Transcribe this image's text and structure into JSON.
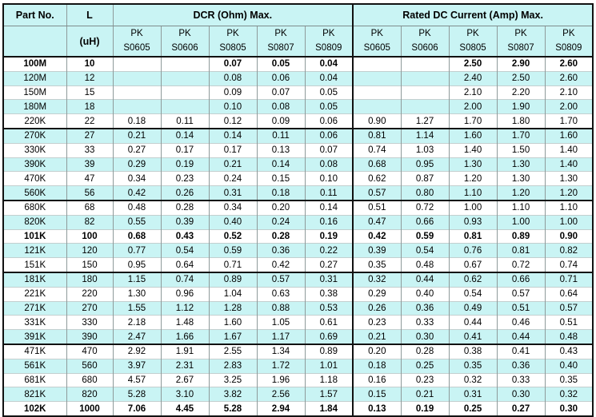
{
  "header": {
    "part_no": "Part No.",
    "l": "L",
    "l_unit": "(uH)",
    "dcr_group": "DCR (Ohm) Max.",
    "idc_group": "Rated DC Current (Amp) Max.",
    "series_prefix": "PK",
    "series": [
      "S0605",
      "S0606",
      "S0805",
      "S0807",
      "S0809"
    ]
  },
  "colors": {
    "stripe_cyan": "#c9f4f4",
    "header_bg": "#c9f4f4",
    "grid_gray": "#8e9a9a",
    "row_line": "#c3cfcf",
    "group_line": "#111111"
  },
  "rows": [
    {
      "part": "100M",
      "l": "10",
      "bold": true,
      "group_end": false,
      "dcr": [
        "",
        "",
        "0.07",
        "0.05",
        "0.04"
      ],
      "idc": [
        "",
        "",
        "2.50",
        "2.90",
        "2.60"
      ]
    },
    {
      "part": "120M",
      "l": "12",
      "bold": false,
      "group_end": false,
      "dcr": [
        "",
        "",
        "0.08",
        "0.06",
        "0.04"
      ],
      "idc": [
        "",
        "",
        "2.40",
        "2.50",
        "2.60"
      ]
    },
    {
      "part": "150M",
      "l": "15",
      "bold": false,
      "group_end": false,
      "dcr": [
        "",
        "",
        "0.09",
        "0.07",
        "0.05"
      ],
      "idc": [
        "",
        "",
        "2.10",
        "2.20",
        "2.10"
      ]
    },
    {
      "part": "180M",
      "l": "18",
      "bold": false,
      "group_end": false,
      "dcr": [
        "",
        "",
        "0.10",
        "0.08",
        "0.05"
      ],
      "idc": [
        "",
        "",
        "2.00",
        "1.90",
        "2.00"
      ]
    },
    {
      "part": "220K",
      "l": "22",
      "bold": false,
      "group_end": true,
      "dcr": [
        "0.18",
        "0.11",
        "0.12",
        "0.09",
        "0.06"
      ],
      "idc": [
        "0.90",
        "1.27",
        "1.70",
        "1.80",
        "1.70"
      ]
    },
    {
      "part": "270K",
      "l": "27",
      "bold": false,
      "group_end": false,
      "dcr": [
        "0.21",
        "0.14",
        "0.14",
        "0.11",
        "0.06"
      ],
      "idc": [
        "0.81",
        "1.14",
        "1.60",
        "1.70",
        "1.60"
      ]
    },
    {
      "part": "330K",
      "l": "33",
      "bold": false,
      "group_end": false,
      "dcr": [
        "0.27",
        "0.17",
        "0.17",
        "0.13",
        "0.07"
      ],
      "idc": [
        "0.74",
        "1.03",
        "1.40",
        "1.50",
        "1.40"
      ]
    },
    {
      "part": "390K",
      "l": "39",
      "bold": false,
      "group_end": false,
      "dcr": [
        "0.29",
        "0.19",
        "0.21",
        "0.14",
        "0.08"
      ],
      "idc": [
        "0.68",
        "0.95",
        "1.30",
        "1.30",
        "1.40"
      ]
    },
    {
      "part": "470K",
      "l": "47",
      "bold": false,
      "group_end": false,
      "dcr": [
        "0.34",
        "0.23",
        "0.24",
        "0.15",
        "0.10"
      ],
      "idc": [
        "0.62",
        "0.87",
        "1.20",
        "1.30",
        "1.30"
      ]
    },
    {
      "part": "560K",
      "l": "56",
      "bold": false,
      "group_end": true,
      "dcr": [
        "0.42",
        "0.26",
        "0.31",
        "0.18",
        "0.11"
      ],
      "idc": [
        "0.57",
        "0.80",
        "1.10",
        "1.20",
        "1.20"
      ]
    },
    {
      "part": "680K",
      "l": "68",
      "bold": false,
      "group_end": false,
      "dcr": [
        "0.48",
        "0.28",
        "0.34",
        "0.20",
        "0.14"
      ],
      "idc": [
        "0.51",
        "0.72",
        "1.00",
        "1.10",
        "1.10"
      ]
    },
    {
      "part": "820K",
      "l": "82",
      "bold": false,
      "group_end": false,
      "dcr": [
        "0.55",
        "0.39",
        "0.40",
        "0.24",
        "0.16"
      ],
      "idc": [
        "0.47",
        "0.66",
        "0.93",
        "1.00",
        "1.00"
      ]
    },
    {
      "part": "101K",
      "l": "100",
      "bold": true,
      "group_end": false,
      "dcr": [
        "0.68",
        "0.43",
        "0.52",
        "0.28",
        "0.19"
      ],
      "idc": [
        "0.42",
        "0.59",
        "0.81",
        "0.89",
        "0.90"
      ]
    },
    {
      "part": "121K",
      "l": "120",
      "bold": false,
      "group_end": false,
      "dcr": [
        "0.77",
        "0.54",
        "0.59",
        "0.36",
        "0.22"
      ],
      "idc": [
        "0.39",
        "0.54",
        "0.76",
        "0.81",
        "0.82"
      ]
    },
    {
      "part": "151K",
      "l": "150",
      "bold": false,
      "group_end": true,
      "dcr": [
        "0.95",
        "0.64",
        "0.71",
        "0.42",
        "0.27"
      ],
      "idc": [
        "0.35",
        "0.48",
        "0.67",
        "0.72",
        "0.74"
      ]
    },
    {
      "part": "181K",
      "l": "180",
      "bold": false,
      "group_end": false,
      "dcr": [
        "1.15",
        "0.74",
        "0.89",
        "0.57",
        "0.31"
      ],
      "idc": [
        "0.32",
        "0.44",
        "0.62",
        "0.66",
        "0.71"
      ]
    },
    {
      "part": "221K",
      "l": "220",
      "bold": false,
      "group_end": false,
      "dcr": [
        "1.30",
        "0.96",
        "1.04",
        "0.63",
        "0.38"
      ],
      "idc": [
        "0.29",
        "0.40",
        "0.54",
        "0.57",
        "0.64"
      ]
    },
    {
      "part": "271K",
      "l": "270",
      "bold": false,
      "group_end": false,
      "dcr": [
        "1.55",
        "1.12",
        "1.28",
        "0.88",
        "0.53"
      ],
      "idc": [
        "0.26",
        "0.36",
        "0.49",
        "0.51",
        "0.57"
      ]
    },
    {
      "part": "331K",
      "l": "330",
      "bold": false,
      "group_end": false,
      "dcr": [
        "2.18",
        "1.48",
        "1.60",
        "1.05",
        "0.61"
      ],
      "idc": [
        "0.23",
        "0.33",
        "0.44",
        "0.46",
        "0.51"
      ]
    },
    {
      "part": "391K",
      "l": "390",
      "bold": false,
      "group_end": true,
      "dcr": [
        "2.47",
        "1.66",
        "1.67",
        "1.17",
        "0.69"
      ],
      "idc": [
        "0.21",
        "0.30",
        "0.41",
        "0.44",
        "0.48"
      ]
    },
    {
      "part": "471K",
      "l": "470",
      "bold": false,
      "group_end": false,
      "dcr": [
        "2.92",
        "1.91",
        "2.55",
        "1.34",
        "0.89"
      ],
      "idc": [
        "0.20",
        "0.28",
        "0.38",
        "0.41",
        "0.43"
      ]
    },
    {
      "part": "561K",
      "l": "560",
      "bold": false,
      "group_end": false,
      "dcr": [
        "3.97",
        "2.31",
        "2.83",
        "1.72",
        "1.01"
      ],
      "idc": [
        "0.18",
        "0.25",
        "0.35",
        "0.36",
        "0.40"
      ]
    },
    {
      "part": "681K",
      "l": "680",
      "bold": false,
      "group_end": false,
      "dcr": [
        "4.57",
        "2.67",
        "3.25",
        "1.96",
        "1.18"
      ],
      "idc": [
        "0.16",
        "0.23",
        "0.32",
        "0.33",
        "0.35"
      ]
    },
    {
      "part": "821K",
      "l": "820",
      "bold": false,
      "group_end": false,
      "dcr": [
        "5.28",
        "3.10",
        "3.82",
        "2.56",
        "1.57"
      ],
      "idc": [
        "0.15",
        "0.21",
        "0.31",
        "0.30",
        "0.32"
      ]
    },
    {
      "part": "102K",
      "l": "1000",
      "bold": true,
      "group_end": false,
      "dcr": [
        "7.06",
        "4.45",
        "5.28",
        "2.94",
        "1.84"
      ],
      "idc": [
        "0.13",
        "0.19",
        "0.25",
        "0.27",
        "0.30"
      ]
    }
  ]
}
